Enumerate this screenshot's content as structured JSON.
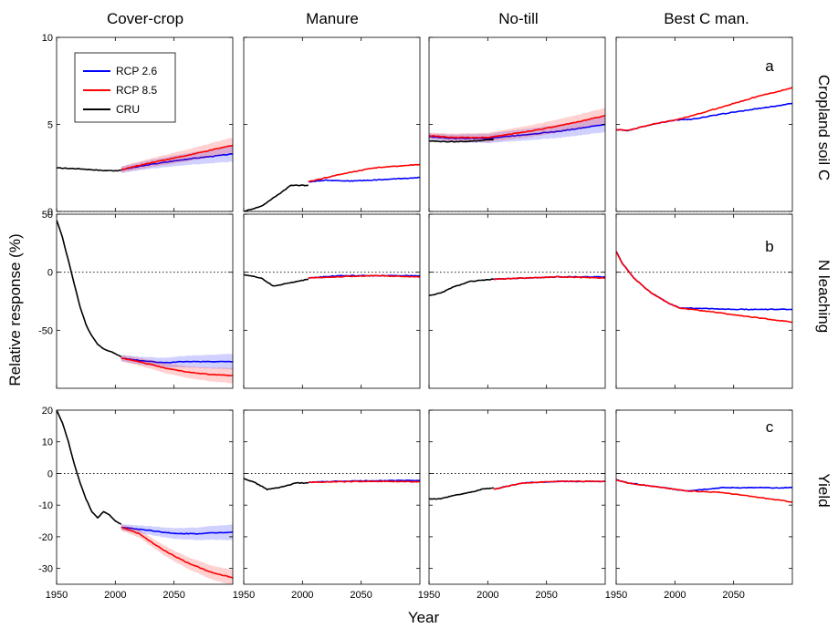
{
  "chart_data": {
    "type": "line",
    "column_titles": [
      "Cover-crop",
      "Manure",
      "No-till",
      "Best C man."
    ],
    "row_labels": [
      "Cropland soil C",
      "N leaching",
      "Yield"
    ],
    "panel_letters": [
      "a",
      "b",
      "c"
    ],
    "ylabel": "Relative response (%)",
    "xlabel": "Year",
    "xlim": [
      1950,
      2100
    ],
    "xticks": [
      1950,
      2000,
      2050
    ],
    "rows": [
      {
        "ylim": [
          0,
          10
        ],
        "yticks": [
          0,
          5,
          10
        ],
        "tick_labels": [
          "0",
          "5",
          "10"
        ]
      },
      {
        "ylim": [
          -100,
          50
        ],
        "yticks": [
          -50,
          0,
          50
        ],
        "tick_labels": [
          "-50",
          "0",
          "50"
        ]
      },
      {
        "ylim": [
          -35,
          20
        ],
        "yticks": [
          -30,
          -20,
          -10,
          0,
          10,
          20
        ],
        "tick_labels": [
          "-30",
          "-20",
          "-10",
          "0",
          "10",
          "20"
        ]
      }
    ],
    "legend": {
      "position": "top-left of first panel",
      "entries": [
        {
          "label": "RCP 2.6",
          "color": "#0000ff"
        },
        {
          "label": "RCP 8.5",
          "color": "#ff0000"
        },
        {
          "label": "CRU",
          "color": "#000000"
        }
      ]
    },
    "colors": {
      "rcp26": "#0000ff",
      "rcp85": "#ff0000",
      "cru": "#000000"
    },
    "panels": [
      {
        "row": 0,
        "col": 0,
        "band": true,
        "cru": [
          [
            1950,
            2.5
          ],
          [
            1970,
            2.45
          ],
          [
            1990,
            2.35
          ],
          [
            2005,
            2.35
          ]
        ],
        "rcp26": [
          [
            2005,
            2.4
          ],
          [
            2030,
            2.7
          ],
          [
            2060,
            3.0
          ],
          [
            2100,
            3.3
          ]
        ],
        "rcp85": [
          [
            2005,
            2.4
          ],
          [
            2030,
            2.8
          ],
          [
            2060,
            3.2
          ],
          [
            2100,
            3.8
          ]
        ]
      },
      {
        "row": 0,
        "col": 1,
        "cru": [
          [
            1950,
            0
          ],
          [
            1965,
            0.3
          ],
          [
            1980,
            1.0
          ],
          [
            1990,
            1.5
          ],
          [
            2005,
            1.5
          ]
        ],
        "rcp26": [
          [
            2005,
            1.7
          ],
          [
            2020,
            1.8
          ],
          [
            2040,
            1.75
          ],
          [
            2060,
            1.8
          ],
          [
            2100,
            1.95
          ]
        ],
        "rcp85": [
          [
            2005,
            1.7
          ],
          [
            2030,
            2.1
          ],
          [
            2060,
            2.5
          ],
          [
            2100,
            2.7
          ]
        ]
      },
      {
        "row": 0,
        "col": 2,
        "band": true,
        "cru": [
          [
            1950,
            4.05
          ],
          [
            1970,
            4.0
          ],
          [
            1990,
            4.05
          ],
          [
            2005,
            4.15
          ]
        ],
        "rcp26": [
          [
            1950,
            4.3
          ],
          [
            1970,
            4.2
          ],
          [
            2000,
            4.2
          ],
          [
            2030,
            4.4
          ],
          [
            2060,
            4.6
          ],
          [
            2100,
            5.0
          ]
        ],
        "rcp85": [
          [
            1950,
            4.35
          ],
          [
            1970,
            4.25
          ],
          [
            2000,
            4.25
          ],
          [
            2030,
            4.55
          ],
          [
            2060,
            4.9
          ],
          [
            2100,
            5.5
          ]
        ]
      },
      {
        "row": 0,
        "col": 3,
        "rcp26": [
          [
            1950,
            4.7
          ],
          [
            1960,
            4.65
          ],
          [
            1980,
            5.0
          ],
          [
            2000,
            5.25
          ],
          [
            2015,
            5.3
          ],
          [
            2040,
            5.6
          ],
          [
            2070,
            5.9
          ],
          [
            2100,
            6.2
          ]
        ],
        "rcp85": [
          [
            1950,
            4.7
          ],
          [
            1960,
            4.65
          ],
          [
            1980,
            5.0
          ],
          [
            2000,
            5.25
          ],
          [
            2015,
            5.5
          ],
          [
            2040,
            6.0
          ],
          [
            2070,
            6.6
          ],
          [
            2100,
            7.1
          ]
        ]
      },
      {
        "row": 1,
        "col": 0,
        "band": true,
        "cru": [
          [
            1950,
            45
          ],
          [
            1955,
            30
          ],
          [
            1960,
            10
          ],
          [
            1965,
            -10
          ],
          [
            1970,
            -30
          ],
          [
            1975,
            -45
          ],
          [
            1980,
            -55
          ],
          [
            1985,
            -62
          ],
          [
            1990,
            -66
          ],
          [
            1995,
            -68
          ],
          [
            2000,
            -70
          ],
          [
            2005,
            -73
          ]
        ],
        "rcp26": [
          [
            2005,
            -74
          ],
          [
            2020,
            -76
          ],
          [
            2040,
            -78
          ],
          [
            2060,
            -77
          ],
          [
            2100,
            -77
          ]
        ],
        "rcp85": [
          [
            2005,
            -74
          ],
          [
            2020,
            -77
          ],
          [
            2040,
            -82
          ],
          [
            2060,
            -86
          ],
          [
            2080,
            -88
          ],
          [
            2100,
            -89
          ]
        ]
      },
      {
        "row": 1,
        "col": 1,
        "cru": [
          [
            1950,
            -2
          ],
          [
            1965,
            -5
          ],
          [
            1975,
            -12
          ],
          [
            1985,
            -10
          ],
          [
            1995,
            -8
          ],
          [
            2005,
            -6
          ]
        ],
        "rcp26": [
          [
            2005,
            -5
          ],
          [
            2030,
            -3
          ],
          [
            2060,
            -3
          ],
          [
            2100,
            -3
          ]
        ],
        "rcp85": [
          [
            2005,
            -5
          ],
          [
            2030,
            -4
          ],
          [
            2060,
            -3
          ],
          [
            2100,
            -4
          ]
        ]
      },
      {
        "row": 1,
        "col": 2,
        "cru": [
          [
            1950,
            -20
          ],
          [
            1960,
            -18
          ],
          [
            1970,
            -13
          ],
          [
            1985,
            -8
          ],
          [
            2005,
            -6
          ]
        ],
        "rcp26": [
          [
            2005,
            -6
          ],
          [
            2030,
            -5
          ],
          [
            2060,
            -4
          ],
          [
            2100,
            -4
          ]
        ],
        "rcp85": [
          [
            2005,
            -6
          ],
          [
            2030,
            -5
          ],
          [
            2060,
            -4
          ],
          [
            2100,
            -5
          ]
        ]
      },
      {
        "row": 1,
        "col": 3,
        "rcp26": [
          [
            1950,
            18
          ],
          [
            1955,
            8
          ],
          [
            1965,
            -5
          ],
          [
            1980,
            -18
          ],
          [
            1995,
            -27
          ],
          [
            2005,
            -31
          ],
          [
            2020,
            -31
          ],
          [
            2050,
            -32
          ],
          [
            2100,
            -32
          ]
        ],
        "rcp85": [
          [
            1950,
            18
          ],
          [
            1955,
            8
          ],
          [
            1965,
            -5
          ],
          [
            1980,
            -18
          ],
          [
            1995,
            -27
          ],
          [
            2005,
            -31
          ],
          [
            2030,
            -34
          ],
          [
            2060,
            -38
          ],
          [
            2100,
            -43
          ]
        ]
      },
      {
        "row": 2,
        "col": 0,
        "band": true,
        "cru": [
          [
            1950,
            20
          ],
          [
            1955,
            16
          ],
          [
            1960,
            10
          ],
          [
            1965,
            3
          ],
          [
            1970,
            -3
          ],
          [
            1975,
            -8
          ],
          [
            1980,
            -12
          ],
          [
            1985,
            -14
          ],
          [
            1990,
            -12
          ],
          [
            1995,
            -13
          ],
          [
            2000,
            -15
          ],
          [
            2005,
            -16
          ]
        ],
        "rcp26": [
          [
            2005,
            -17
          ],
          [
            2030,
            -18
          ],
          [
            2050,
            -19
          ],
          [
            2070,
            -19
          ],
          [
            2100,
            -18.5
          ]
        ],
        "rcp85": [
          [
            2005,
            -17
          ],
          [
            2020,
            -19
          ],
          [
            2040,
            -24
          ],
          [
            2060,
            -28
          ],
          [
            2080,
            -31
          ],
          [
            2100,
            -33
          ]
        ]
      },
      {
        "row": 2,
        "col": 1,
        "cru": [
          [
            1950,
            -1.5
          ],
          [
            1960,
            -3
          ],
          [
            1970,
            -5
          ],
          [
            1980,
            -4.5
          ],
          [
            1995,
            -3
          ],
          [
            2005,
            -3
          ]
        ],
        "rcp26": [
          [
            2005,
            -2.8
          ],
          [
            2030,
            -2.5
          ],
          [
            2060,
            -2.3
          ],
          [
            2100,
            -2.2
          ]
        ],
        "rcp85": [
          [
            2005,
            -2.8
          ],
          [
            2030,
            -2.6
          ],
          [
            2060,
            -2.5
          ],
          [
            2100,
            -2.6
          ]
        ]
      },
      {
        "row": 2,
        "col": 2,
        "cru": [
          [
            1950,
            -8
          ],
          [
            1960,
            -8
          ],
          [
            1970,
            -7
          ],
          [
            1985,
            -6
          ],
          [
            1995,
            -5
          ],
          [
            2005,
            -4.5
          ]
        ],
        "rcp26": [
          [
            2005,
            -5
          ],
          [
            2030,
            -3
          ],
          [
            2060,
            -2.5
          ],
          [
            2100,
            -2.5
          ]
        ],
        "rcp85": [
          [
            2005,
            -5
          ],
          [
            2030,
            -3
          ],
          [
            2060,
            -2.5
          ],
          [
            2100,
            -2.5
          ]
        ]
      },
      {
        "row": 2,
        "col": 3,
        "rcp26": [
          [
            1950,
            -2
          ],
          [
            1960,
            -3
          ],
          [
            1980,
            -4
          ],
          [
            2000,
            -5
          ],
          [
            2010,
            -5.5
          ],
          [
            2040,
            -4.5
          ],
          [
            2070,
            -4.5
          ],
          [
            2100,
            -4.5
          ]
        ],
        "rcp85": [
          [
            1950,
            -2
          ],
          [
            1960,
            -3
          ],
          [
            1980,
            -4
          ],
          [
            2000,
            -5
          ],
          [
            2010,
            -5.5
          ],
          [
            2040,
            -6
          ],
          [
            2070,
            -7.5
          ],
          [
            2100,
            -9
          ]
        ]
      }
    ]
  }
}
